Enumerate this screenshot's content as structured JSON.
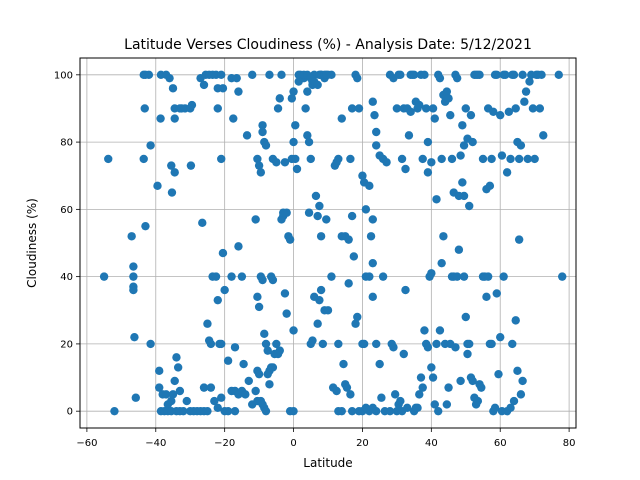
{
  "chart_data": {
    "type": "scatter",
    "title": "Latitude Verses Cloudiness (%) - Analysis Date: 5/12/2021",
    "xlabel": "Latitude",
    "ylabel": "Cloudiness (%)",
    "xlim": [
      -62,
      82
    ],
    "ylim": [
      -5,
      105
    ],
    "xticks": [
      -60,
      -40,
      -20,
      0,
      20,
      40,
      60,
      80
    ],
    "yticks": [
      0,
      20,
      40,
      60,
      80,
      100
    ],
    "grid": true,
    "marker_color": "#1f77b4",
    "points": [
      [
        -55,
        40
      ],
      [
        -53.8,
        75
      ],
      [
        -52,
        0
      ],
      [
        -47,
        52
      ],
      [
        -46.5,
        43
      ],
      [
        -46.5,
        40
      ],
      [
        -46.5,
        37
      ],
      [
        -46.5,
        36
      ],
      [
        -46.2,
        22
      ],
      [
        -45.8,
        4
      ],
      [
        -43.5,
        100
      ],
      [
        -43,
        100
      ],
      [
        -42,
        100
      ],
      [
        -43.2,
        90
      ],
      [
        -43.5,
        75
      ],
      [
        -43,
        55
      ],
      [
        -41.5,
        79
      ],
      [
        -41.5,
        20
      ],
      [
        -39.5,
        67
      ],
      [
        -38.6,
        87
      ],
      [
        -38.5,
        100
      ],
      [
        -37,
        100
      ],
      [
        -36,
        99
      ],
      [
        -35.5,
        73
      ],
      [
        -35.3,
        65
      ],
      [
        -35,
        96
      ],
      [
        -34.5,
        90
      ],
      [
        -34.5,
        87
      ],
      [
        -34.5,
        71
      ],
      [
        -33,
        90
      ],
      [
        -32.5,
        90
      ],
      [
        -31.5,
        90
      ],
      [
        -30,
        90
      ],
      [
        -29.5,
        91
      ],
      [
        -29.8,
        73
      ],
      [
        -39,
        12
      ],
      [
        -39,
        7
      ],
      [
        -38,
        5
      ],
      [
        -37,
        5
      ],
      [
        -36.5,
        2
      ],
      [
        -35.5,
        3
      ],
      [
        -35,
        5
      ],
      [
        -34.5,
        9
      ],
      [
        -34,
        16
      ],
      [
        -33.5,
        13
      ],
      [
        -33,
        6
      ],
      [
        -38.5,
        0
      ],
      [
        -37.5,
        0
      ],
      [
        -36.5,
        0
      ],
      [
        -35.5,
        0
      ],
      [
        -34,
        0
      ],
      [
        -33,
        0
      ],
      [
        -32,
        0
      ],
      [
        -31,
        3
      ],
      [
        -30,
        0
      ],
      [
        -29,
        0
      ],
      [
        -28,
        0
      ],
      [
        -27,
        0
      ],
      [
        -26,
        0
      ],
      [
        -27,
        99
      ],
      [
        -26,
        97
      ],
      [
        -25.5,
        100
      ],
      [
        -24.5,
        100
      ],
      [
        -23.5,
        100
      ],
      [
        -22.5,
        100
      ],
      [
        -22,
        96
      ],
      [
        -22,
        90
      ],
      [
        -21,
        75
      ],
      [
        -21,
        100
      ],
      [
        -20.5,
        96
      ],
      [
        -18,
        99
      ],
      [
        -16.5,
        99
      ],
      [
        -17.5,
        87
      ],
      [
        -16,
        95
      ],
      [
        -13.5,
        82
      ],
      [
        -12,
        100
      ],
      [
        -26.5,
        56
      ],
      [
        -25,
        26
      ],
      [
        -24.5,
        21
      ],
      [
        -24,
        20
      ],
      [
        -23.5,
        40
      ],
      [
        -22.5,
        40
      ],
      [
        -22,
        33
      ],
      [
        -21.5,
        20
      ],
      [
        -21,
        20
      ],
      [
        -20.5,
        47
      ],
      [
        -20,
        36
      ],
      [
        -19,
        15
      ],
      [
        -18,
        40
      ],
      [
        -17,
        19
      ],
      [
        -16,
        49
      ],
      [
        -15,
        40
      ],
      [
        -14.5,
        14
      ],
      [
        -26,
        7
      ],
      [
        -25,
        0
      ],
      [
        -24,
        7
      ],
      [
        -23,
        3
      ],
      [
        -22,
        1
      ],
      [
        -21,
        4
      ],
      [
        -20,
        0
      ],
      [
        -19,
        0
      ],
      [
        -17,
        0
      ],
      [
        -18,
        6
      ],
      [
        -17,
        6
      ],
      [
        -16,
        5
      ],
      [
        -15,
        6
      ],
      [
        -14,
        5
      ],
      [
        -13,
        9
      ],
      [
        -12,
        2
      ],
      [
        -11,
        6
      ],
      [
        -10.5,
        3
      ],
      [
        -11,
        57
      ],
      [
        -10.5,
        75
      ],
      [
        -10,
        73
      ],
      [
        -9.5,
        71
      ],
      [
        -9,
        85
      ],
      [
        -9,
        83
      ],
      [
        -8.5,
        80
      ],
      [
        -8,
        79
      ],
      [
        -7,
        100
      ],
      [
        -6,
        75
      ],
      [
        -5,
        74
      ],
      [
        -4.5,
        90
      ],
      [
        -4,
        93
      ],
      [
        -3.5,
        100
      ],
      [
        -3,
        58
      ],
      [
        -2.5,
        74
      ],
      [
        -2,
        59
      ],
      [
        -1.5,
        52
      ],
      [
        -1,
        51
      ],
      [
        -0.5,
        75
      ],
      [
        -0.5,
        93
      ],
      [
        0,
        95
      ],
      [
        0,
        80
      ],
      [
        0.5,
        85
      ],
      [
        0.5,
        75
      ],
      [
        1,
        72
      ],
      [
        1.5,
        98
      ],
      [
        1.5,
        100
      ],
      [
        -10.5,
        34
      ],
      [
        -10,
        31
      ],
      [
        -9.5,
        40
      ],
      [
        -9,
        39
      ],
      [
        -8.5,
        23
      ],
      [
        -8,
        20
      ],
      [
        -7.5,
        18
      ],
      [
        -7,
        12
      ],
      [
        -6.5,
        40
      ],
      [
        -6,
        39
      ],
      [
        -5.5,
        17
      ],
      [
        -5,
        20
      ],
      [
        -4.5,
        17
      ],
      [
        -4,
        18
      ],
      [
        -3.5,
        57
      ],
      [
        -3,
        59
      ],
      [
        -2.5,
        35
      ],
      [
        -2,
        29
      ],
      [
        -1,
        0
      ],
      [
        0,
        0
      ],
      [
        0,
        24
      ],
      [
        -10.5,
        12
      ],
      [
        -10,
        11
      ],
      [
        -9.5,
        3
      ],
      [
        -9,
        2
      ],
      [
        -8.5,
        1
      ],
      [
        -8,
        0
      ],
      [
        -7.5,
        11
      ],
      [
        -7,
        8
      ],
      [
        -6.5,
        13
      ],
      [
        -6,
        13
      ],
      [
        2,
        100
      ],
      [
        3,
        99
      ],
      [
        3.5,
        90
      ],
      [
        4,
        95
      ],
      [
        4,
        82
      ],
      [
        4.5,
        80
      ],
      [
        5,
        75
      ],
      [
        5.5,
        98
      ],
      [
        5.5,
        97
      ],
      [
        6,
        100
      ],
      [
        6.5,
        64
      ],
      [
        7,
        58
      ],
      [
        7.5,
        61
      ],
      [
        8,
        100
      ],
      [
        8,
        52
      ],
      [
        9,
        99
      ],
      [
        9.5,
        57
      ],
      [
        10,
        100
      ],
      [
        11,
        100
      ],
      [
        12,
        73
      ],
      [
        12.5,
        74
      ],
      [
        13,
        75
      ],
      [
        14,
        87
      ],
      [
        15,
        52
      ],
      [
        16,
        51
      ],
      [
        16.5,
        75
      ],
      [
        17,
        90
      ],
      [
        18,
        100
      ],
      [
        18.5,
        99
      ],
      [
        19,
        90
      ],
      [
        20,
        70
      ],
      [
        20.5,
        68
      ],
      [
        21,
        60
      ],
      [
        22,
        67
      ],
      [
        23,
        92
      ],
      [
        23.5,
        88
      ],
      [
        24,
        83
      ],
      [
        24,
        79
      ],
      [
        25,
        76
      ],
      [
        26,
        75
      ],
      [
        27,
        74
      ],
      [
        3,
        100
      ],
      [
        4,
        100
      ],
      [
        5,
        99
      ],
      [
        6,
        98
      ],
      [
        7,
        97
      ],
      [
        7.5,
        100
      ],
      [
        8,
        100
      ],
      [
        9,
        100
      ],
      [
        9.5,
        100
      ],
      [
        4.5,
        59
      ],
      [
        5,
        20
      ],
      [
        5.5,
        21
      ],
      [
        6,
        34
      ],
      [
        7,
        26
      ],
      [
        7.5,
        33
      ],
      [
        8,
        36
      ],
      [
        8.5,
        20
      ],
      [
        9,
        30
      ],
      [
        10,
        30
      ],
      [
        11,
        40
      ],
      [
        11.5,
        7
      ],
      [
        12.5,
        6
      ],
      [
        13,
        20
      ],
      [
        14,
        52
      ],
      [
        14.5,
        14
      ],
      [
        15,
        8
      ],
      [
        15.5,
        7
      ],
      [
        16,
        38
      ],
      [
        16.5,
        5
      ],
      [
        17,
        58
      ],
      [
        17.5,
        46
      ],
      [
        18,
        26
      ],
      [
        18.5,
        28
      ],
      [
        19,
        0
      ],
      [
        20,
        20
      ],
      [
        20.5,
        20
      ],
      [
        21,
        40
      ],
      [
        22,
        40
      ],
      [
        23,
        57
      ],
      [
        22.5,
        52
      ],
      [
        23,
        44
      ],
      [
        23,
        34
      ],
      [
        24,
        20
      ],
      [
        25,
        14
      ],
      [
        25.5,
        4
      ],
      [
        26,
        40
      ],
      [
        26.5,
        0
      ],
      [
        22,
        0
      ],
      [
        23,
        1
      ],
      [
        24,
        0
      ],
      [
        13,
        0
      ],
      [
        14,
        0
      ],
      [
        17,
        0
      ],
      [
        20,
        0
      ],
      [
        21,
        1
      ],
      [
        28,
        0
      ],
      [
        28.5,
        20
      ],
      [
        29,
        19
      ],
      [
        29.5,
        5
      ],
      [
        30,
        0
      ],
      [
        30.5,
        2
      ],
      [
        31,
        3
      ],
      [
        31.5,
        0
      ],
      [
        32,
        17
      ],
      [
        32.5,
        36
      ],
      [
        33,
        1
      ],
      [
        28,
        100
      ],
      [
        29,
        99
      ],
      [
        30,
        90
      ],
      [
        30.5,
        100
      ],
      [
        31,
        100
      ],
      [
        31.5,
        75
      ],
      [
        32,
        90
      ],
      [
        32.5,
        72
      ],
      [
        33,
        90
      ],
      [
        34,
        100
      ],
      [
        34.5,
        100
      ],
      [
        35,
        100
      ],
      [
        35.5,
        92
      ],
      [
        36,
        90
      ],
      [
        36.5,
        91
      ],
      [
        37,
        100
      ],
      [
        37.5,
        75
      ],
      [
        38,
        100
      ],
      [
        38.5,
        90
      ],
      [
        39,
        71
      ],
      [
        33.5,
        82
      ],
      [
        34,
        89
      ],
      [
        35,
        0
      ],
      [
        35.5,
        1
      ],
      [
        36,
        1
      ],
      [
        36.5,
        5
      ],
      [
        37,
        10
      ],
      [
        37.5,
        7
      ],
      [
        38,
        24
      ],
      [
        38.5,
        20
      ],
      [
        39,
        19
      ],
      [
        39.5,
        40
      ],
      [
        40,
        41
      ],
      [
        40,
        13
      ],
      [
        40.5,
        10
      ],
      [
        41,
        2
      ],
      [
        41.5,
        20
      ],
      [
        42,
        0
      ],
      [
        42.5,
        24
      ],
      [
        43,
        44
      ],
      [
        43.5,
        52
      ],
      [
        44,
        20
      ],
      [
        44.5,
        2
      ],
      [
        45,
        7
      ],
      [
        45.5,
        20
      ],
      [
        46,
        40
      ],
      [
        46.5,
        40
      ],
      [
        47,
        19
      ],
      [
        47.5,
        40
      ],
      [
        48,
        48
      ],
      [
        48.5,
        9
      ],
      [
        49,
        68
      ],
      [
        49.5,
        64
      ],
      [
        49.5,
        40
      ],
      [
        50,
        28
      ],
      [
        50.5,
        17
      ],
      [
        50.5,
        20
      ],
      [
        51,
        20
      ],
      [
        51.5,
        10
      ],
      [
        52,
        9
      ],
      [
        52.5,
        4
      ],
      [
        53,
        2
      ],
      [
        53.5,
        3
      ],
      [
        54,
        8
      ],
      [
        54.5,
        7
      ],
      [
        55,
        40
      ],
      [
        55.5,
        40
      ],
      [
        56,
        34
      ],
      [
        56.5,
        40
      ],
      [
        57,
        20
      ],
      [
        57.5,
        20
      ],
      [
        58,
        0
      ],
      [
        58.5,
        1
      ],
      [
        59,
        35
      ],
      [
        59.5,
        11
      ],
      [
        60,
        22
      ],
      [
        60.5,
        0
      ],
      [
        61,
        40
      ],
      [
        62,
        0
      ],
      [
        63,
        1
      ],
      [
        63.5,
        20
      ],
      [
        64,
        3
      ],
      [
        64.5,
        27
      ],
      [
        65,
        12
      ],
      [
        65.5,
        51
      ],
      [
        66,
        5
      ],
      [
        66.5,
        9
      ],
      [
        39,
        80
      ],
      [
        40,
        74
      ],
      [
        40.5,
        90
      ],
      [
        41,
        87
      ],
      [
        41.5,
        63
      ],
      [
        42,
        100
      ],
      [
        42.5,
        99
      ],
      [
        43,
        75
      ],
      [
        43.5,
        94
      ],
      [
        44,
        92
      ],
      [
        44.5,
        95
      ],
      [
        45,
        93
      ],
      [
        45.5,
        88
      ],
      [
        46,
        75
      ],
      [
        46.5,
        65
      ],
      [
        47,
        100
      ],
      [
        47.5,
        99
      ],
      [
        48,
        64
      ],
      [
        48.5,
        76
      ],
      [
        49,
        85
      ],
      [
        49.5,
        79
      ],
      [
        50,
        90
      ],
      [
        50.5,
        81
      ],
      [
        51,
        61
      ],
      [
        51.5,
        88
      ],
      [
        52,
        80
      ],
      [
        52.5,
        100
      ],
      [
        53,
        100
      ],
      [
        53.5,
        100
      ],
      [
        54,
        100
      ],
      [
        55,
        75
      ],
      [
        56,
        66
      ],
      [
        56.5,
        90
      ],
      [
        57,
        67
      ],
      [
        57.5,
        75
      ],
      [
        58,
        89
      ],
      [
        58.5,
        100
      ],
      [
        59,
        100
      ],
      [
        60,
        88
      ],
      [
        60.5,
        76
      ],
      [
        61,
        100
      ],
      [
        61.5,
        100
      ],
      [
        62,
        71
      ],
      [
        62.5,
        89
      ],
      [
        63,
        75
      ],
      [
        63.5,
        100
      ],
      [
        64,
        100
      ],
      [
        64.5,
        90
      ],
      [
        65,
        80
      ],
      [
        65.5,
        75
      ],
      [
        66,
        79
      ],
      [
        66.5,
        100
      ],
      [
        67,
        92
      ],
      [
        67.5,
        95
      ],
      [
        68,
        75
      ],
      [
        68.5,
        98
      ],
      [
        69,
        100
      ],
      [
        69.5,
        90
      ],
      [
        70,
        75
      ],
      [
        70.5,
        100
      ],
      [
        71,
        100
      ],
      [
        71.5,
        90
      ],
      [
        72,
        100
      ],
      [
        72.5,
        82
      ],
      [
        77,
        100
      ],
      [
        78,
        40
      ]
    ]
  }
}
